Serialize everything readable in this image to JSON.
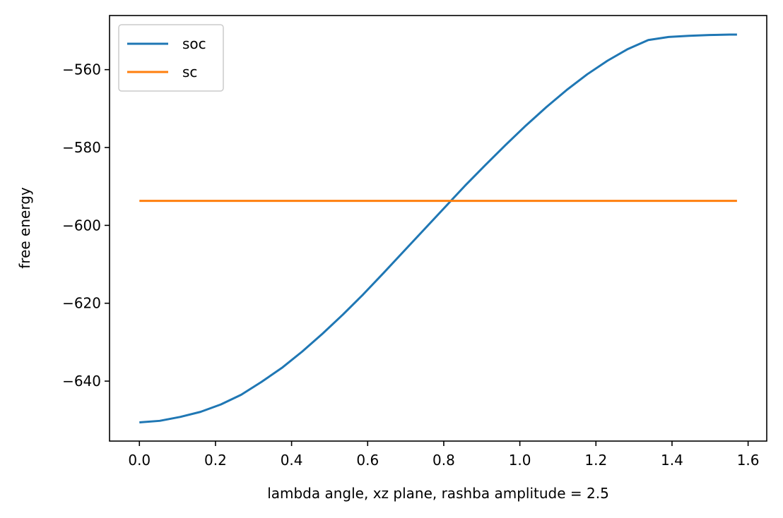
{
  "chart_data": {
    "type": "line",
    "xlabel": "lambda angle, xz plane, rashba amplitude = 2.5",
    "ylabel": "free energy",
    "xlim": [
      -0.0785,
      1.649
    ],
    "ylim": [
      -655.4,
      -546.1
    ],
    "x_ticks": [
      0.0,
      0.2,
      0.4,
      0.6,
      0.8,
      1.0,
      1.2,
      1.4,
      1.6
    ],
    "x_tick_labels": [
      "0.0",
      "0.2",
      "0.4",
      "0.6",
      "0.8",
      "1.0",
      "1.2",
      "1.4",
      "1.6"
    ],
    "y_ticks": [
      -640,
      -620,
      -600,
      -580,
      -560
    ],
    "y_tick_labels": [
      "−640",
      "−620",
      "−600",
      "−580",
      "−560"
    ],
    "grid": false,
    "legend_position": "upper-left",
    "series": [
      {
        "name": "soc",
        "color": "#1f77b4",
        "x": [
          0.0,
          0.0535,
          0.107,
          0.1605,
          0.214,
          0.2675,
          0.321,
          0.3745,
          0.428,
          0.4815,
          0.535,
          0.5885,
          0.642,
          0.6955,
          0.749,
          0.8025,
          0.856,
          0.9095,
          0.963,
          1.0165,
          1.07,
          1.1235,
          1.177,
          1.2305,
          1.284,
          1.3375,
          1.391,
          1.4445,
          1.498,
          1.5515,
          1.5708
        ],
        "values": [
          -650.6,
          -650.2,
          -649.2,
          -647.9,
          -646.0,
          -643.5,
          -640.2,
          -636.6,
          -632.4,
          -627.8,
          -622.9,
          -617.7,
          -612.2,
          -606.6,
          -601.0,
          -595.4,
          -589.8,
          -584.5,
          -579.3,
          -574.3,
          -569.6,
          -565.2,
          -561.2,
          -557.7,
          -554.7,
          -552.4,
          -551.6,
          -551.3,
          -551.1,
          -551.0,
          -551.0
        ]
      },
      {
        "name": "sc",
        "color": "#ff7f0e",
        "x": [
          0.0,
          1.5708
        ],
        "values": [
          -593.7,
          -593.7
        ]
      }
    ]
  }
}
